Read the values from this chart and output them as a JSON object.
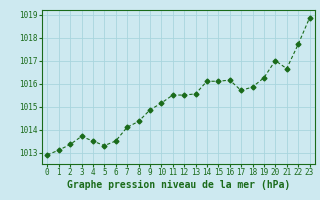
{
  "x": [
    0,
    1,
    2,
    3,
    4,
    5,
    6,
    7,
    8,
    9,
    10,
    11,
    12,
    13,
    14,
    15,
    16,
    17,
    18,
    19,
    20,
    21,
    22,
    23
  ],
  "y": [
    1012.9,
    1013.1,
    1013.35,
    1013.7,
    1013.5,
    1013.3,
    1013.5,
    1014.1,
    1014.35,
    1014.85,
    1015.15,
    1015.5,
    1015.5,
    1015.55,
    1016.1,
    1016.1,
    1016.15,
    1015.7,
    1015.85,
    1016.25,
    1017.0,
    1016.65,
    1017.7,
    1018.85
  ],
  "line_color": "#1a6b1a",
  "marker": "D",
  "marker_size": 2.5,
  "bg_color": "#cde9f0",
  "grid_color": "#a8d5de",
  "tick_label_color": "#1a6b1a",
  "xlabel": "Graphe pression niveau de la mer (hPa)",
  "xlabel_color": "#1a6b1a",
  "xlabel_fontsize": 7,
  "tick_fontsize": 5.5,
  "ylim": [
    1012.5,
    1019.2
  ],
  "yticks": [
    1013,
    1014,
    1015,
    1016,
    1017,
    1018,
    1019
  ],
  "xticks": [
    0,
    1,
    2,
    3,
    4,
    5,
    6,
    7,
    8,
    9,
    10,
    11,
    12,
    13,
    14,
    15,
    16,
    17,
    18,
    19,
    20,
    21,
    22,
    23
  ],
  "line_width": 0.8,
  "spine_color": "#1a6b1a"
}
